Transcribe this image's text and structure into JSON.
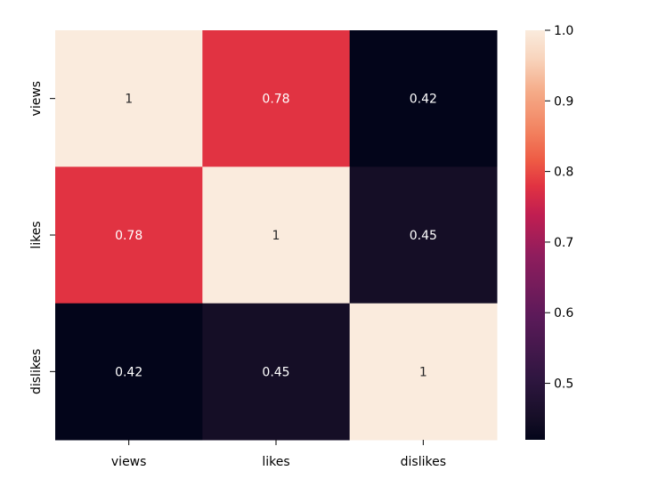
{
  "chart_data": {
    "type": "heatmap",
    "rows": [
      "views",
      "likes",
      "dislikes"
    ],
    "columns": [
      "views",
      "likes",
      "dislikes"
    ],
    "values": [
      [
        1.0,
        0.78,
        0.42
      ],
      [
        0.78,
        1.0,
        0.45
      ],
      [
        0.42,
        0.45,
        1.0
      ]
    ],
    "cell_labels": [
      [
        "1",
        "0.78",
        "0.42"
      ],
      [
        "0.78",
        "1",
        "0.45"
      ],
      [
        "0.42",
        "0.45",
        "1"
      ]
    ],
    "colorbar": {
      "range": [
        0.42,
        1.0
      ],
      "ticks": [
        0.5,
        0.6,
        0.7,
        0.8,
        0.9,
        1.0
      ],
      "tick_labels": [
        "0.5",
        "0.6",
        "0.7",
        "0.8",
        "0.9",
        "1.0"
      ]
    },
    "colormap": "rocket",
    "colormap_stops": [
      {
        "t": 0.0,
        "color": "#03051a"
      },
      {
        "t": 0.05,
        "color": "#150e26"
      },
      {
        "t": 0.15,
        "color": "#2f1640"
      },
      {
        "t": 0.3,
        "color": "#5b1a59"
      },
      {
        "t": 0.45,
        "color": "#8f1d5d"
      },
      {
        "t": 0.55,
        "color": "#c11e51"
      },
      {
        "t": 0.62,
        "color": "#e13342"
      },
      {
        "t": 0.68,
        "color": "#ee5a44"
      },
      {
        "t": 0.75,
        "color": "#f2805e"
      },
      {
        "t": 0.85,
        "color": "#f5ab88"
      },
      {
        "t": 0.93,
        "color": "#f8d4bc"
      },
      {
        "t": 1.0,
        "color": "#faebdd"
      }
    ],
    "title": "",
    "xlabel": "",
    "ylabel": ""
  }
}
